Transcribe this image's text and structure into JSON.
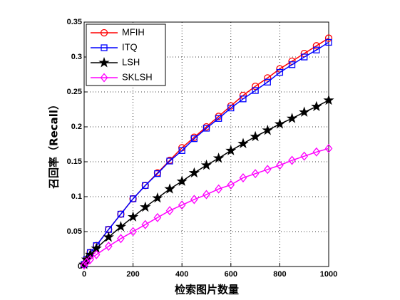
{
  "chart_data": {
    "type": "line",
    "xlabel": "检索图片数量",
    "ylabel": "召回率（Recall）",
    "x": [
      0,
      10,
      25,
      50,
      100,
      150,
      200,
      250,
      300,
      350,
      400,
      450,
      500,
      550,
      600,
      650,
      700,
      750,
      800,
      850,
      900,
      950,
      1000
    ],
    "series": [
      {
        "name": "MFIH",
        "color": "#ff0000",
        "marker": "circle",
        "values": [
          0.003,
          0.01,
          0.02,
          0.03,
          0.053,
          0.075,
          0.097,
          0.116,
          0.134,
          0.152,
          0.17,
          0.185,
          0.2,
          0.215,
          0.23,
          0.245,
          0.258,
          0.27,
          0.283,
          0.294,
          0.305,
          0.316,
          0.327
        ]
      },
      {
        "name": "ITQ",
        "color": "#0000ff",
        "marker": "square",
        "values": [
          0.003,
          0.01,
          0.02,
          0.03,
          0.053,
          0.075,
          0.097,
          0.116,
          0.133,
          0.151,
          0.166,
          0.183,
          0.198,
          0.212,
          0.227,
          0.24,
          0.252,
          0.264,
          0.278,
          0.289,
          0.3,
          0.31,
          0.321
        ]
      },
      {
        "name": "LSH",
        "color": "#000000",
        "marker": "star",
        "values": [
          0.003,
          0.01,
          0.017,
          0.026,
          0.042,
          0.057,
          0.071,
          0.085,
          0.098,
          0.111,
          0.122,
          0.134,
          0.145,
          0.155,
          0.166,
          0.176,
          0.186,
          0.195,
          0.204,
          0.212,
          0.221,
          0.229,
          0.238
        ]
      },
      {
        "name": "SKLSH",
        "color": "#ff00ff",
        "marker": "diamond",
        "values": [
          0.002,
          0.006,
          0.01,
          0.017,
          0.029,
          0.04,
          0.05,
          0.06,
          0.07,
          0.08,
          0.088,
          0.096,
          0.103,
          0.111,
          0.117,
          0.127,
          0.133,
          0.139,
          0.145,
          0.152,
          0.158,
          0.164,
          0.169
        ]
      }
    ],
    "xlim": [
      0,
      1000
    ],
    "xticks": [
      0,
      200,
      400,
      600,
      800,
      1000
    ],
    "ylim": [
      0,
      0.35
    ],
    "yticks": [
      0,
      0.05,
      0.1,
      0.15,
      0.2,
      0.25,
      0.3,
      0.35
    ],
    "grid": true,
    "legend": "upper-left"
  }
}
